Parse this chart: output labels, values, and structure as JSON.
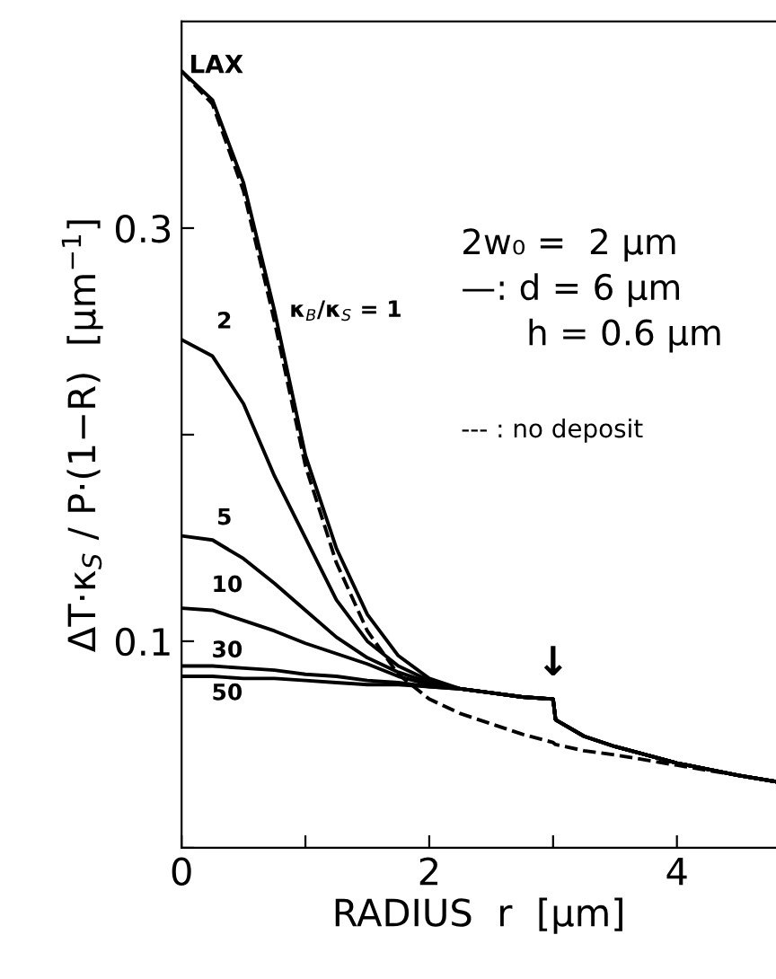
{
  "chart_data": {
    "type": "line",
    "xlabel": "RADIUS  r  [μm]",
    "ylabel": "ΔT·κ$_{S}$ / P·(1−R)  [μm$^{−1}$]",
    "x": [
      0,
      0.25,
      0.5,
      0.75,
      1.0,
      1.25,
      1.5,
      1.75,
      2.0,
      2.25,
      2.5,
      2.75,
      3.0,
      3.02,
      3.25,
      3.5,
      4.0,
      4.5,
      4.8
    ],
    "series": [
      {
        "name": "κ$_{B}$/κ$_{S}$ = 1",
        "color": "#000000",
        "line_style": "solid",
        "values": [
          0.376,
          0.362,
          0.322,
          0.26,
          0.19,
          0.145,
          0.113,
          0.093,
          0.082,
          0.077,
          0.075,
          0.073,
          0.072,
          0.062,
          0.054,
          0.049,
          0.041,
          0.035,
          0.032
        ]
      },
      {
        "color": "#000000",
        "line_style": "dashed",
        "values": [
          0.376,
          0.36,
          0.318,
          0.255,
          0.185,
          0.138,
          0.105,
          0.084,
          0.072,
          0.065,
          0.06,
          0.055,
          0.051,
          0.05,
          0.047,
          0.045,
          0.04,
          0.035,
          0.032
        ]
      },
      {
        "name": "2",
        "color": "#000000",
        "line_style": "solid",
        "values": [
          0.246,
          0.238,
          0.215,
          0.18,
          0.15,
          0.12,
          0.1,
          0.088,
          0.081,
          0.077,
          0.075,
          0.073,
          0.072,
          0.062,
          0.054,
          0.049,
          0.041,
          0.035,
          0.032
        ]
      },
      {
        "name": "5",
        "color": "#000000",
        "line_style": "solid",
        "values": [
          0.151,
          0.149,
          0.14,
          0.128,
          0.115,
          0.102,
          0.092,
          0.085,
          0.08,
          0.077,
          0.075,
          0.073,
          0.072,
          0.062,
          0.054,
          0.049,
          0.041,
          0.035,
          0.032
        ]
      },
      {
        "name": "10",
        "color": "#000000",
        "line_style": "solid",
        "values": [
          0.116,
          0.115,
          0.11,
          0.105,
          0.099,
          0.094,
          0.089,
          0.083,
          0.079,
          0.077,
          0.075,
          0.073,
          0.072,
          0.062,
          0.054,
          0.049,
          0.041,
          0.035,
          0.032
        ]
      },
      {
        "name": "30",
        "color": "#000000",
        "line_style": "solid",
        "values": [
          0.088,
          0.088,
          0.087,
          0.086,
          0.084,
          0.083,
          0.081,
          0.08,
          0.078,
          0.077,
          0.075,
          0.073,
          0.072,
          0.062,
          0.054,
          0.049,
          0.041,
          0.035,
          0.032
        ]
      },
      {
        "name": "50",
        "color": "#000000",
        "line_style": "solid",
        "values": [
          0.083,
          0.083,
          0.082,
          0.082,
          0.081,
          0.08,
          0.079,
          0.079,
          0.078,
          0.077,
          0.075,
          0.073,
          0.072,
          0.062,
          0.054,
          0.049,
          0.041,
          0.035,
          0.032
        ]
      }
    ],
    "xlim": [
      0,
      4.8
    ],
    "ylim": [
      0,
      0.4
    ],
    "xticks": [
      0,
      {
        "value": 1,
        "label": null
      },
      2,
      {
        "value": 3,
        "label": null
      },
      4
    ],
    "yticks": [
      {
        "value": 0,
        "label": null
      },
      0.1,
      {
        "value": 0.2,
        "label": null
      },
      0.3
    ],
    "grid": false,
    "legend": false,
    "marker": "none",
    "annotations": [
      {
        "text": "LAX",
        "x": 0,
        "y": 0.376
      },
      {
        "text": "↓",
        "x": 3.0,
        "y": 0.072
      },
      "2w₀ =  2 μm",
      "—: d = 6 μm",
      "h = 0.6 μm",
      "--- : no deposit"
    ]
  }
}
